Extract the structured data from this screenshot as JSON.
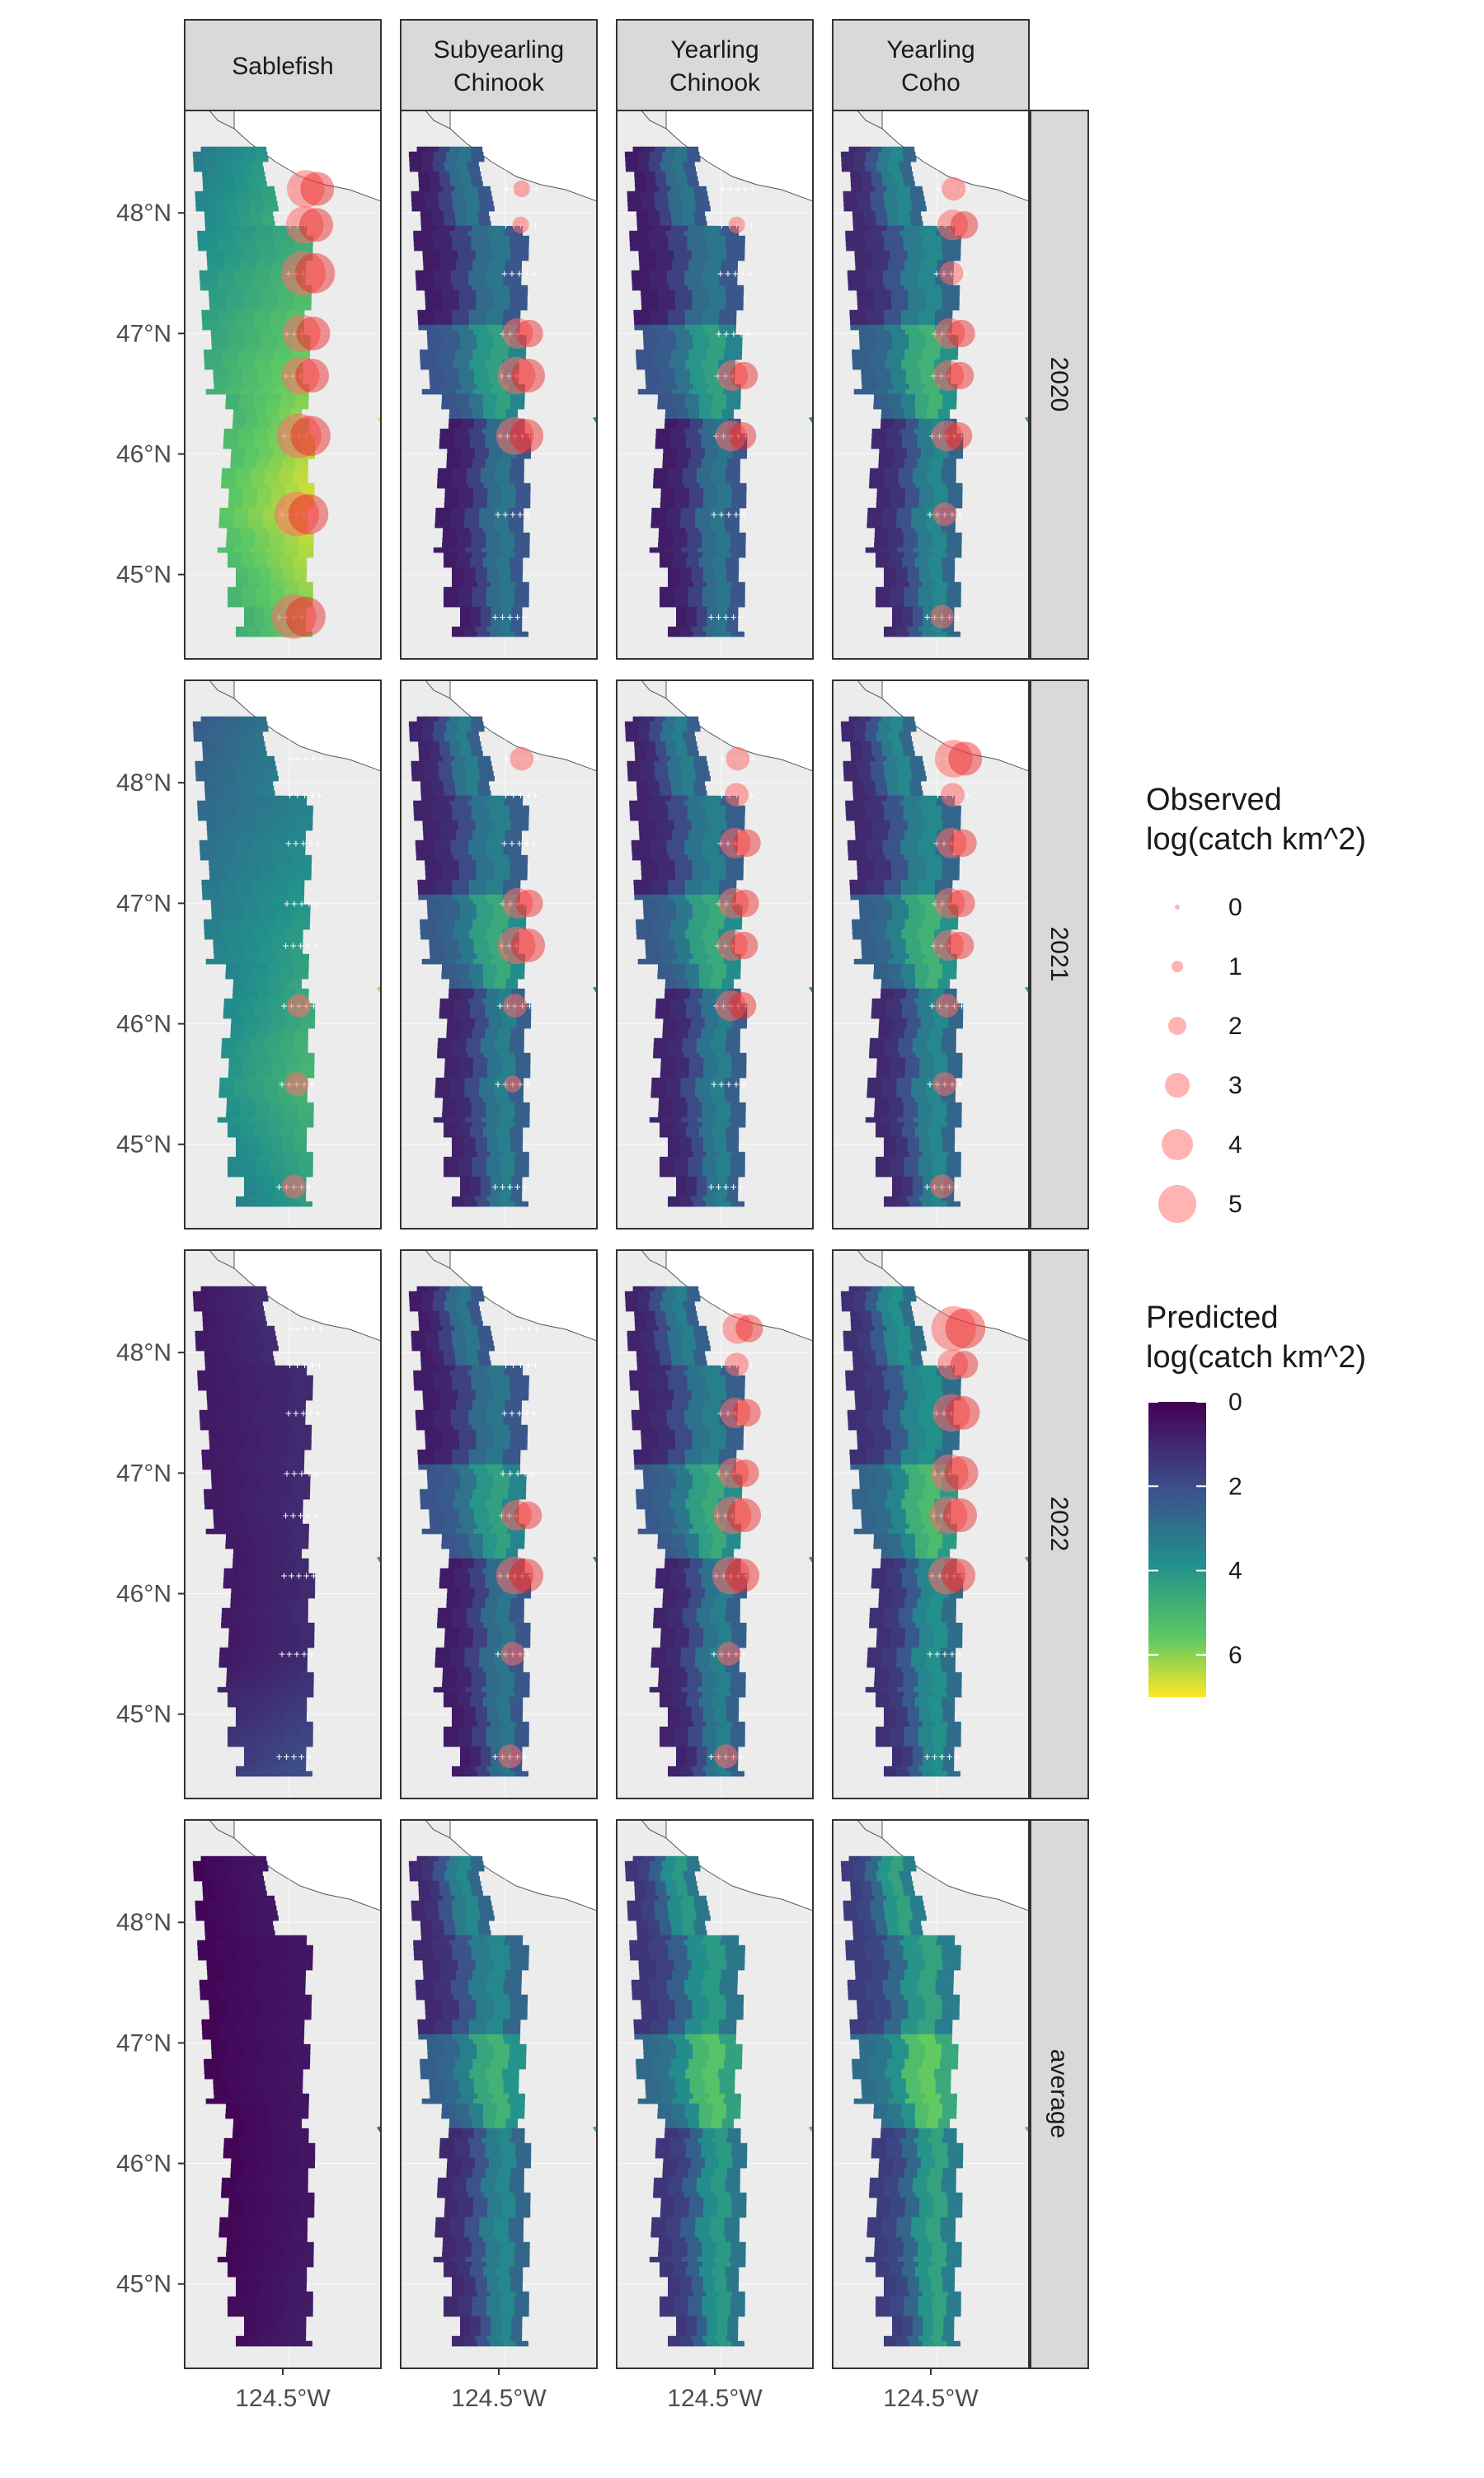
{
  "colors": {
    "panel_background": "#e5e5e5",
    "land_fill": "#ececec",
    "strip_background": "#d9d9d9",
    "panel_border": "#333333",
    "observed_point": "#ff6b6b",
    "station_marker": "#ffffff",
    "viridis": [
      "#440154",
      "#3b528b",
      "#21908c",
      "#5dc963",
      "#fde725"
    ]
  },
  "facets": {
    "columns": [
      "Sablefish",
      "Subyearling Chinook",
      "Yearling Chinook",
      "Yearling Coho"
    ],
    "rows": [
      "2020",
      "2021",
      "2022",
      "average"
    ]
  },
  "axes": {
    "y_ticks": [
      "48°N",
      "47°N",
      "46°N",
      "45°N"
    ],
    "x_tick": "124.5°W"
  },
  "legend_observed": {
    "title_line1": "Observed",
    "title_line2": "log(catch km^2)",
    "values": [
      "0",
      "1",
      "2",
      "3",
      "4",
      "5"
    ]
  },
  "legend_predicted": {
    "title_line1": "Predicted",
    "title_line2": "log(catch km^2)",
    "ticks": [
      "0",
      "2",
      "4",
      "6"
    ]
  },
  "chart_data": {
    "type": "heatmap",
    "description_free": true,
    "facet_columns": [
      "Sablefish",
      "Subyearling Chinook",
      "Yearling Chinook",
      "Yearling Coho"
    ],
    "facet_rows": [
      "2020",
      "2021",
      "2022",
      "average"
    ],
    "color_scale": {
      "palette": "viridis",
      "range": [
        0,
        7
      ],
      "ticks": [
        0,
        2,
        4,
        6
      ]
    },
    "size_scale": {
      "range": [
        0,
        5
      ],
      "breaks": [
        0,
        1,
        2,
        3,
        4,
        5
      ]
    },
    "station_latitudes": [
      48.2,
      47.9,
      47.5,
      47.0,
      46.65,
      46.15,
      45.5,
      44.65
    ],
    "predicted_intensity": [
      [
        0.85,
        0.2,
        0.2,
        0.3
      ],
      [
        0.6,
        0.25,
        0.25,
        0.3
      ],
      [
        0.25,
        0.2,
        0.25,
        0.35
      ],
      [
        0.05,
        0.3,
        0.4,
        0.45
      ]
    ],
    "observed_size_by_station": [
      [
        [
          4,
          4,
          5,
          4,
          4,
          5,
          5,
          5
        ],
        [
          1,
          1,
          0,
          3,
          4,
          4,
          0,
          0
        ],
        [
          0,
          1,
          0,
          0,
          3,
          3,
          0,
          0
        ],
        [
          2,
          3,
          2,
          3,
          3,
          3,
          2,
          2
        ]
      ],
      [
        [
          0,
          0,
          0,
          0,
          0,
          2,
          2,
          2
        ],
        [
          2,
          0,
          0,
          3,
          4,
          2,
          1,
          0
        ],
        [
          2,
          2,
          3,
          3,
          3,
          3,
          0,
          0
        ],
        [
          4,
          2,
          3,
          3,
          3,
          2,
          2,
          2
        ]
      ],
      [
        [
          0,
          0,
          0,
          0,
          0,
          0,
          0,
          0
        ],
        [
          0,
          0,
          0,
          0,
          3,
          4,
          2,
          2
        ],
        [
          3,
          2,
          3,
          3,
          4,
          4,
          2,
          2
        ],
        [
          5,
          3,
          4,
          4,
          4,
          4,
          0,
          0
        ]
      ]
    ]
  }
}
